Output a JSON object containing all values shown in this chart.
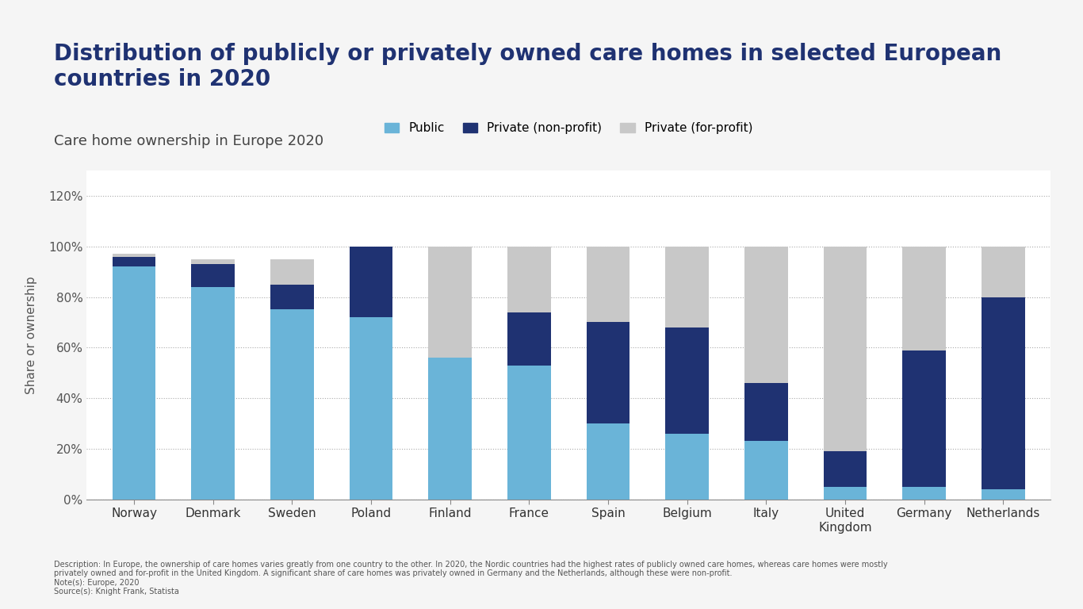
{
  "title": "Distribution of publicly or privately owned care homes in selected European\ncountries in 2020",
  "subtitle": "Care home ownership in Europe 2020",
  "categories": [
    "Norway",
    "Denmark",
    "Sweden",
    "Poland",
    "Finland",
    "France",
    "Spain",
    "Belgium",
    "Italy",
    "United\nKingdom",
    "Germany",
    "Netherlands"
  ],
  "public": [
    92,
    84,
    75,
    72,
    56,
    53,
    30,
    26,
    23,
    5,
    5,
    4
  ],
  "private_nonprofit": [
    4,
    9,
    10,
    28,
    0,
    21,
    40,
    42,
    23,
    14,
    54,
    76
  ],
  "private_forprofit": [
    1,
    2,
    10,
    0,
    44,
    26,
    30,
    32,
    54,
    81,
    41,
    20
  ],
  "colors": {
    "public": "#6ab4d8",
    "private_nonprofit": "#1f3272",
    "private_forprofit": "#c8c8c8"
  },
  "legend_labels": [
    "Public",
    "Private (non-profit)",
    "Private (for-profit)"
  ],
  "ylabel": "Share or ownership",
  "ylim": [
    0,
    130
  ],
  "yticks": [
    0,
    20,
    40,
    60,
    80,
    100,
    120
  ],
  "ytick_labels": [
    "0%",
    "20%",
    "40%",
    "60%",
    "80%",
    "100%",
    "120%"
  ],
  "background_color": "#f5f5f5",
  "plot_background": "#ffffff",
  "title_color": "#1f3272",
  "subtitle_color": "#444444",
  "title_fontsize": 20,
  "subtitle_fontsize": 13,
  "description": "Description: In Europe, the ownership of care homes varies greatly from one country to the other. In 2020, the Nordic countries had the highest rates of publicly owned care homes, whereas care homes were mostly\nprivately owned and for-profit in the United Kingdom. A significant share of care homes was privately owned in Germany and the Netherlands, although these were non-profit.\nNote(s): Europe, 2020\nSource(s): Knight Frank, Statista"
}
